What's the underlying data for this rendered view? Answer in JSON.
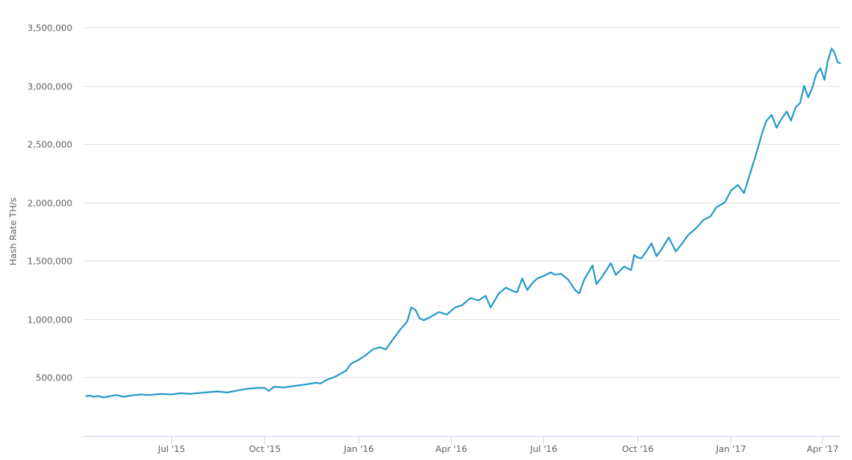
{
  "chart_data": {
    "type": "line",
    "title": "",
    "xlabel": "",
    "ylabel": "Hash Rate TH/s",
    "y_ticks": [
      500000,
      1000000,
      1500000,
      2000000,
      2500000,
      3000000,
      3500000
    ],
    "y_tick_labels": [
      "500,000",
      "1,000,000",
      "1,500,000",
      "2,000,000",
      "2,500,000",
      "3,000,000",
      "3,500,000"
    ],
    "ylim": [
      0,
      3500000
    ],
    "xlim": [
      "2015-04-06",
      "2017-04-19"
    ],
    "x_ticks": [
      "2015-07-01",
      "2015-10-01",
      "2016-01-01",
      "2016-04-01",
      "2016-07-01",
      "2016-10-01",
      "2017-01-01",
      "2017-04-01"
    ],
    "x_tick_labels": [
      "Jul '15",
      "Oct '15",
      "Jan '16",
      "Apr '16",
      "Jul '16",
      "Oct '16",
      "Jan '17",
      "Apr '17"
    ],
    "grid": true,
    "legend": "none",
    "line_color": "#1f97c8",
    "series": [
      {
        "points": [
          [
            "2015-04-08",
            340000
          ],
          [
            "2015-04-12",
            345000
          ],
          [
            "2015-04-16",
            335000
          ],
          [
            "2015-04-20",
            342000
          ],
          [
            "2015-04-25",
            330000
          ],
          [
            "2015-05-01",
            338000
          ],
          [
            "2015-05-08",
            350000
          ],
          [
            "2015-05-15",
            335000
          ],
          [
            "2015-05-22",
            345000
          ],
          [
            "2015-06-01",
            355000
          ],
          [
            "2015-06-10",
            350000
          ],
          [
            "2015-06-20",
            360000
          ],
          [
            "2015-07-01",
            355000
          ],
          [
            "2015-07-10",
            365000
          ],
          [
            "2015-07-20",
            360000
          ],
          [
            "2015-08-01",
            370000
          ],
          [
            "2015-08-15",
            380000
          ],
          [
            "2015-08-25",
            372000
          ],
          [
            "2015-09-05",
            390000
          ],
          [
            "2015-09-15",
            405000
          ],
          [
            "2015-09-25",
            412000
          ],
          [
            "2015-10-01",
            410000
          ],
          [
            "2015-10-05",
            385000
          ],
          [
            "2015-10-10",
            420000
          ],
          [
            "2015-10-20",
            415000
          ],
          [
            "2015-11-01",
            430000
          ],
          [
            "2015-11-10",
            440000
          ],
          [
            "2015-11-20",
            455000
          ],
          [
            "2015-11-25",
            450000
          ],
          [
            "2015-12-01",
            480000
          ],
          [
            "2015-12-10",
            510000
          ],
          [
            "2015-12-20",
            560000
          ],
          [
            "2015-12-25",
            620000
          ],
          [
            "2016-01-01",
            650000
          ],
          [
            "2016-01-08",
            690000
          ],
          [
            "2016-01-15",
            740000
          ],
          [
            "2016-01-22",
            760000
          ],
          [
            "2016-01-28",
            740000
          ],
          [
            "2016-02-05",
            840000
          ],
          [
            "2016-02-12",
            920000
          ],
          [
            "2016-02-18",
            980000
          ],
          [
            "2016-02-22",
            1100000
          ],
          [
            "2016-02-26",
            1080000
          ],
          [
            "2016-03-01",
            1010000
          ],
          [
            "2016-03-05",
            990000
          ],
          [
            "2016-03-12",
            1020000
          ],
          [
            "2016-03-20",
            1060000
          ],
          [
            "2016-03-28",
            1040000
          ],
          [
            "2016-04-05",
            1100000
          ],
          [
            "2016-04-12",
            1120000
          ],
          [
            "2016-04-20",
            1180000
          ],
          [
            "2016-04-28",
            1160000
          ],
          [
            "2016-05-05",
            1200000
          ],
          [
            "2016-05-10",
            1100000
          ],
          [
            "2016-05-18",
            1220000
          ],
          [
            "2016-05-25",
            1270000
          ],
          [
            "2016-06-01",
            1240000
          ],
          [
            "2016-06-05",
            1230000
          ],
          [
            "2016-06-10",
            1350000
          ],
          [
            "2016-06-15",
            1250000
          ],
          [
            "2016-06-20",
            1310000
          ],
          [
            "2016-06-25",
            1350000
          ],
          [
            "2016-07-01",
            1370000
          ],
          [
            "2016-07-08",
            1400000
          ],
          [
            "2016-07-12",
            1380000
          ],
          [
            "2016-07-18",
            1390000
          ],
          [
            "2016-07-25",
            1340000
          ],
          [
            "2016-08-01",
            1250000
          ],
          [
            "2016-08-05",
            1220000
          ],
          [
            "2016-08-10",
            1340000
          ],
          [
            "2016-08-18",
            1460000
          ],
          [
            "2016-08-22",
            1300000
          ],
          [
            "2016-08-28",
            1370000
          ],
          [
            "2016-09-05",
            1480000
          ],
          [
            "2016-09-10",
            1380000
          ],
          [
            "2016-09-18",
            1450000
          ],
          [
            "2016-09-25",
            1420000
          ],
          [
            "2016-09-28",
            1550000
          ],
          [
            "2016-10-01",
            1530000
          ],
          [
            "2016-10-05",
            1520000
          ],
          [
            "2016-10-10",
            1580000
          ],
          [
            "2016-10-15",
            1650000
          ],
          [
            "2016-10-20",
            1540000
          ],
          [
            "2016-10-25",
            1600000
          ],
          [
            "2016-11-01",
            1700000
          ],
          [
            "2016-11-08",
            1580000
          ],
          [
            "2016-11-15",
            1660000
          ],
          [
            "2016-11-20",
            1720000
          ],
          [
            "2016-11-28",
            1780000
          ],
          [
            "2016-12-05",
            1850000
          ],
          [
            "2016-12-12",
            1880000
          ],
          [
            "2016-12-18",
            1960000
          ],
          [
            "2016-12-22",
            1980000
          ],
          [
            "2016-12-26",
            2000000
          ],
          [
            "2017-01-01",
            2100000
          ],
          [
            "2017-01-08",
            2150000
          ],
          [
            "2017-01-14",
            2080000
          ],
          [
            "2017-01-20",
            2250000
          ],
          [
            "2017-01-26",
            2420000
          ],
          [
            "2017-02-01",
            2600000
          ],
          [
            "2017-02-05",
            2700000
          ],
          [
            "2017-02-10",
            2750000
          ],
          [
            "2017-02-15",
            2640000
          ],
          [
            "2017-02-20",
            2720000
          ],
          [
            "2017-02-25",
            2780000
          ],
          [
            "2017-03-01",
            2700000
          ],
          [
            "2017-03-06",
            2820000
          ],
          [
            "2017-03-10",
            2850000
          ],
          [
            "2017-03-14",
            3000000
          ],
          [
            "2017-03-18",
            2900000
          ],
          [
            "2017-03-22",
            2980000
          ],
          [
            "2017-03-26",
            3100000
          ],
          [
            "2017-03-30",
            3150000
          ],
          [
            "2017-04-03",
            3050000
          ],
          [
            "2017-04-06",
            3200000
          ],
          [
            "2017-04-10",
            3320000
          ],
          [
            "2017-04-13",
            3280000
          ],
          [
            "2017-04-16",
            3200000
          ],
          [
            "2017-04-19",
            3190000
          ]
        ]
      }
    ]
  }
}
